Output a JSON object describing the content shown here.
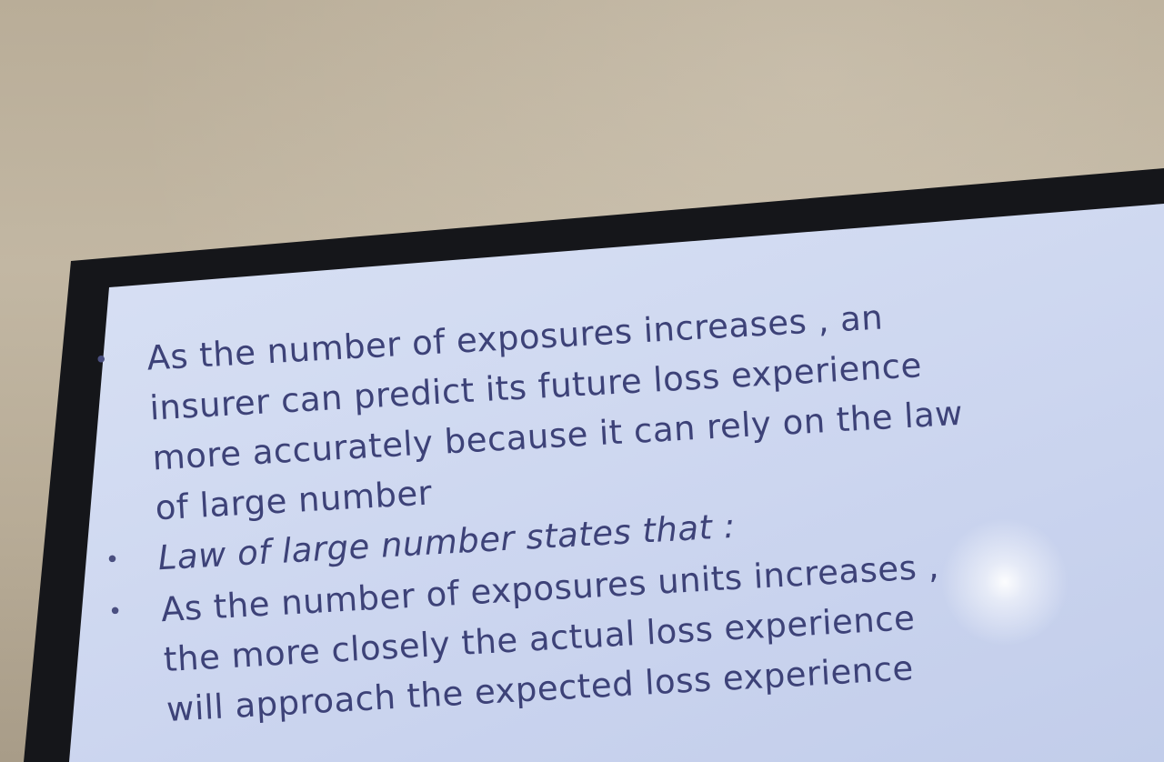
{
  "slide": {
    "bullets": [
      {
        "text": "As the number of exposures increases , an\ninsurer can predict its future loss experience\nmore accurately because it can rely on the law\nof large number",
        "italic": false
      },
      {
        "text": "Law of large number states that :",
        "italic": true
      },
      {
        "text": "As the number of exposures units increases ,\nthe more closely the actual loss experience\nwill approach the expected loss experience",
        "italic": false
      }
    ],
    "bullet_symbol": "•"
  },
  "colors": {
    "wall": "#bdb29d",
    "bezel": "#15161a",
    "screen": "#d3dcf2",
    "text": "#3d4278"
  }
}
